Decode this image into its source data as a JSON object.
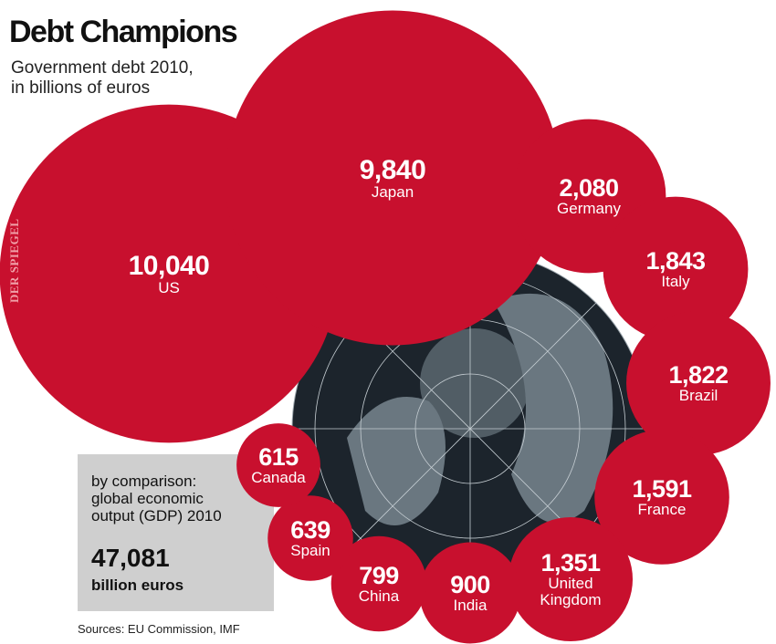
{
  "chart_data": {
    "type": "bubble",
    "title": "Debt Champions",
    "subtitle": [
      "Government debt 2010,",
      "in billions of euros"
    ],
    "watermark": "DER SPIEGEL",
    "color": "#c8102e",
    "categories": [
      "US",
      "Japan",
      "Germany",
      "Italy",
      "Brazil",
      "France",
      "United Kingdom",
      "India",
      "China",
      "Spain",
      "Canada"
    ],
    "values": [
      10040,
      9840,
      2080,
      1843,
      1822,
      1591,
      1351,
      900,
      799,
      639,
      615
    ],
    "value_labels": [
      "10,040",
      "9,840",
      "2,080",
      "1,843",
      "1,822",
      "1,591",
      "1,351",
      "900",
      "799",
      "639",
      "615"
    ],
    "comparison": {
      "text": "by comparison: global economic output (GDP) 2010",
      "value": "47,081",
      "unit": "billion euros"
    },
    "source": "Sources: EU Commission, IMF"
  }
}
